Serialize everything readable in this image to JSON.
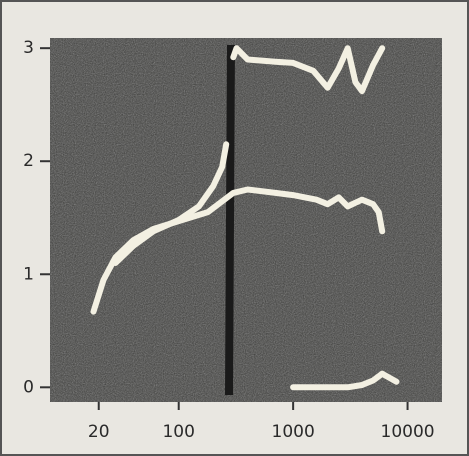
{
  "chart_data": {
    "type": "line",
    "xscale": "log",
    "xlim": [
      7.5,
      20000
    ],
    "ylim": [
      -0.13,
      3.09
    ],
    "xticks": [
      20,
      100,
      1000,
      10000
    ],
    "yticks": [
      0,
      1,
      2,
      3
    ],
    "series": [
      {
        "color": "#f3f0e2",
        "x": [
          18,
          22,
          28,
          40,
          60,
          100,
          180,
          300,
          400,
          700,
          1000,
          1600,
          2000,
          2500,
          3000,
          4000,
          5000,
          5600,
          6000
        ],
        "values": [
          0.67,
          0.95,
          1.15,
          1.3,
          1.4,
          1.47,
          1.55,
          1.72,
          1.75,
          1.72,
          1.7,
          1.66,
          1.62,
          1.68,
          1.6,
          1.66,
          1.62,
          1.55,
          1.38
        ]
      },
      {
        "color": "#f3f0e2",
        "x": [
          28,
          40,
          60,
          100,
          150,
          200,
          240,
          260
        ],
        "values": [
          1.1,
          1.25,
          1.38,
          1.48,
          1.6,
          1.78,
          1.95,
          2.15
        ]
      },
      {
        "color": "#f3f0e2",
        "x": [
          300,
          320,
          400,
          700,
          1000,
          1500,
          2000,
          2500,
          3000,
          3500,
          4000,
          5000,
          6000
        ],
        "values": [
          2.92,
          3.0,
          2.9,
          2.88,
          2.87,
          2.8,
          2.65,
          2.82,
          3.0,
          2.7,
          2.62,
          2.85,
          3.0
        ]
      },
      {
        "color": "#f3f0e2",
        "x": [
          1000,
          2000,
          3000,
          4000,
          5000,
          6000,
          8000
        ],
        "values": [
          0.0,
          0.0,
          0.0,
          0.02,
          0.06,
          0.12,
          0.05
        ]
      }
    ]
  }
}
